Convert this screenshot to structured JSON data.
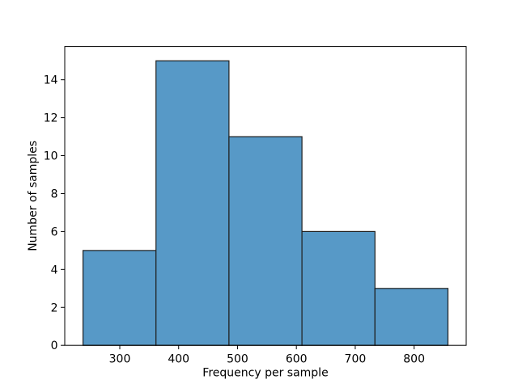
{
  "figure": {
    "background": "#ffffff"
  },
  "chart_data": {
    "type": "bar",
    "subtype": "histogram",
    "title": "",
    "xlabel": "Frequency per sample",
    "ylabel": "Number of samples",
    "bin_edges": [
      237.5,
      361.5,
      485.5,
      609.5,
      733.5,
      857.5
    ],
    "counts": [
      5,
      15,
      11,
      6,
      3
    ],
    "xticks": [
      300,
      400,
      500,
      600,
      700,
      800
    ],
    "yticks": [
      0,
      2,
      4,
      6,
      8,
      10,
      12,
      14
    ],
    "xlim": [
      206.5,
      888.5
    ],
    "ylim": [
      0,
      15.75
    ],
    "grid": false,
    "legend": false,
    "bar_fill": "#5799c7",
    "bar_edge": "#202020",
    "axis_color": "#000000",
    "text_color": "#000000"
  }
}
